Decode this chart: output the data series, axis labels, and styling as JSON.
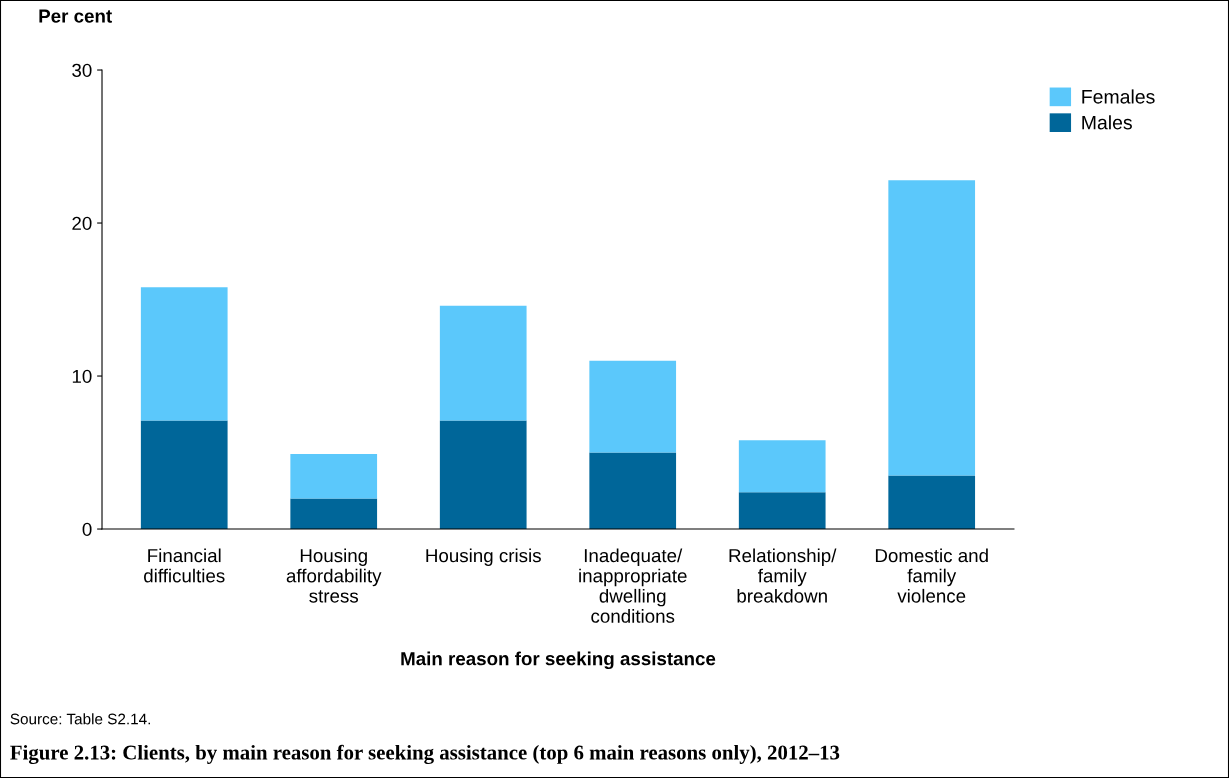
{
  "chart_data": {
    "type": "bar",
    "stacked": true,
    "ylabel": "Per cent",
    "xlabel": "Main reason for seeking assistance",
    "title": "Figure 2.13: Clients, by main reason for seeking assistance (top 6 main reasons only), 2012–13",
    "categories": [
      "Financial\ndifficulties",
      "Housing\naffordability\nstress",
      "Housing crisis",
      "Inadequate/\ninappropriate\ndwelling\nconditions",
      "Relationship/\nfamily\nbreakdown",
      "Domestic and\nfamily\nviolence"
    ],
    "series": [
      {
        "name": "Males",
        "color": "#006699",
        "values": [
          7.1,
          2.0,
          7.1,
          5.0,
          2.4,
          3.5
        ]
      },
      {
        "name": "Females",
        "color": "#5bc8fb",
        "values": [
          8.7,
          2.9,
          7.5,
          6.0,
          3.4,
          19.3
        ]
      }
    ],
    "ylim": [
      0,
      30
    ],
    "yticks": [
      0,
      10,
      20,
      30
    ],
    "grid": false,
    "legend": "top right",
    "annotations": [
      "Source: Table S2.14."
    ]
  }
}
